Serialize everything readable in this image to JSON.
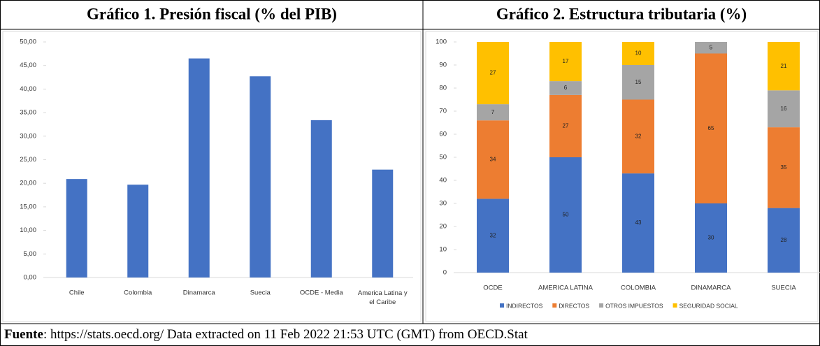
{
  "chart_data": [
    {
      "type": "bar",
      "title": "Gráfico 1. Presión fiscal (% del PIB)",
      "categories": [
        "Chile",
        "Colombia",
        "Dinamarca",
        "Suecia",
        "OCDE - Media",
        "America Latina y el Caribe"
      ],
      "values": [
        20.9,
        19.7,
        46.5,
        42.7,
        33.4,
        22.9
      ],
      "color": "#4472c4",
      "ylim": [
        0,
        50
      ],
      "yticks": [
        {
          "value": 0,
          "label": "0,00"
        },
        {
          "value": 5,
          "label": "5,00"
        },
        {
          "value": 10,
          "label": "10,00"
        },
        {
          "value": 15,
          "label": "15,00"
        },
        {
          "value": 20,
          "label": "20,00"
        },
        {
          "value": 25,
          "label": "25,00"
        },
        {
          "value": 30,
          "label": "30,00"
        },
        {
          "value": 35,
          "label": "35,00"
        },
        {
          "value": 40,
          "label": "40,00"
        },
        {
          "value": 45,
          "label": "45,00"
        },
        {
          "value": 50,
          "label": "50,00"
        }
      ],
      "grid": false
    },
    {
      "type": "stacked_bar",
      "title": "Gráfico 2. Estructura tributaria (%)",
      "categories": [
        "OCDE",
        "AMERICA LATINA",
        "COLOMBIA",
        "DINAMARCA",
        "SUECIA"
      ],
      "series": [
        {
          "name": "INDIRECTOS",
          "color": "#4472c4",
          "values": [
            32,
            50,
            43,
            30,
            28
          ]
        },
        {
          "name": "DIRECTOS",
          "color": "#ed7d31",
          "values": [
            34,
            27,
            32,
            65,
            35
          ]
        },
        {
          "name": "OTROS IMPUESTOS",
          "color": "#a5a5a5",
          "values": [
            7,
            6,
            15,
            5,
            16
          ]
        },
        {
          "name": "SEGURIDAD SOCIAL",
          "color": "#ffc000",
          "values": [
            27,
            17,
            10,
            0,
            21
          ]
        }
      ],
      "ylim": [
        0,
        100
      ],
      "yticks": [
        0,
        10,
        20,
        30,
        40,
        50,
        60,
        70,
        80,
        90,
        100
      ],
      "legend": "bottom",
      "grid": false
    }
  ],
  "footer": {
    "label": "Fuente",
    "text": ": https://stats.oecd.org/ Data extracted on 11 Feb 2022 21:53 UTC (GMT) from OECD.Stat"
  }
}
